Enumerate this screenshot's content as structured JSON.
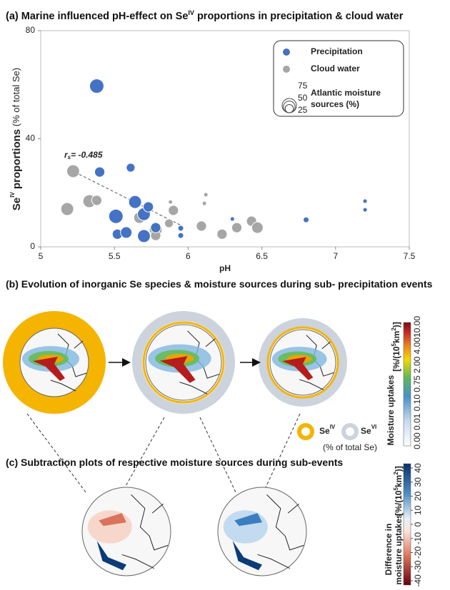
{
  "chart_data": {
    "type": "scatter",
    "title": "(a) Marine influenced pH-effect on Se",
    "title_sup": "IV",
    "title_end": " proportions in precipitation & cloud water",
    "x_label": "pH",
    "y_label": "Se",
    "y_label_sup": "IV",
    "y_label_mid": " proportions",
    "y_label_end": " (% of total Se)",
    "xlim": [
      5,
      7.5
    ],
    "xticks": [
      5,
      5.5,
      6,
      6.5,
      7,
      7.5
    ],
    "ylim": [
      0,
      80
    ],
    "yticks": [
      0,
      40,
      80
    ],
    "series": [
      {
        "name": "Precipitation",
        "color": "#4472c4",
        "x": [
          5.38,
          5.4,
          5.61,
          5.64,
          5.51,
          5.52,
          5.58,
          5.7,
          5.73,
          5.7,
          5.78,
          5.95,
          5.95,
          6.3,
          6.8,
          7.2,
          7.2
        ],
        "values": [
          59.5,
          27.7,
          29.3,
          16.6,
          11.3,
          4.7,
          5.3,
          12.1,
          14.8,
          4.0,
          7.1,
          6.9,
          4.2,
          10.3,
          10.0,
          16.9,
          13.7
        ],
        "sizes": [
          75,
          38,
          28,
          60,
          75,
          38,
          48,
          60,
          38,
          60,
          38,
          12,
          12,
          7,
          12,
          7,
          7
        ]
      },
      {
        "name": "Cloud water",
        "color": "#a6a6a6",
        "x": [
          5.22,
          5.18,
          5.33,
          5.38,
          5.67,
          5.78,
          5.78,
          5.87,
          5.9,
          5.88,
          6.09,
          6.12,
          6.11,
          6.23,
          6.33,
          6.43,
          6.47
        ],
        "values": [
          28.0,
          14.0,
          16.9,
          17.2,
          10.8,
          6.3,
          4.2,
          8.7,
          13.5,
          16.6,
          7.7,
          19.3,
          16.1,
          4.7,
          7.1,
          9.5,
          7.1
        ],
        "sizes": [
          60,
          60,
          60,
          38,
          48,
          60,
          38,
          28,
          38,
          7,
          38,
          7,
          7,
          38,
          38,
          38,
          48
        ]
      }
    ],
    "trendline": {
      "x": [
        5.2,
        5.95
      ],
      "values": [
        28.5,
        8
      ]
    },
    "annotation": "r",
    "annotation_sub": "s",
    "annotation_end": "= -0.485",
    "size_legend": [
      75,
      50,
      25
    ],
    "size_legend_title": [
      "Atlantic moisture",
      "sources (%)"
    ]
  },
  "panel_b": {
    "title": "(b) Evolution of inorganic Se species & moisture sources during sub- precipitation events",
    "legend": [
      {
        "label": "Se",
        "sup": "IV"
      },
      {
        "label": "Se",
        "sup": "VI"
      }
    ],
    "legend_note": "(% of total Se)",
    "colorbar_label": "Moisture uptakes",
    "unit_pre": "[%/(10",
    "unit_sup1": "5",
    "unit_mid": "km",
    "unit_sup2": "2",
    "unit_end": ")]",
    "colorbar_ticks": [
      "10.00",
      "4.00",
      "2.00",
      "0.75",
      "0.10",
      "0.01",
      "0.00"
    ]
  },
  "panel_c": {
    "title": "(c) Subtraction plots of respective moisture sources during sub-events",
    "colorbar_label": [
      "Difference in",
      "moisture uptakes"
    ],
    "unit_pre": "[%/(10",
    "unit_sup1": "5",
    "unit_mid": "km",
    "unit_sup2": "2",
    "unit_end": ")]",
    "colorbar_ticks": [
      40,
      30,
      20,
      10,
      0,
      -10,
      -20,
      -30,
      -40
    ]
  }
}
